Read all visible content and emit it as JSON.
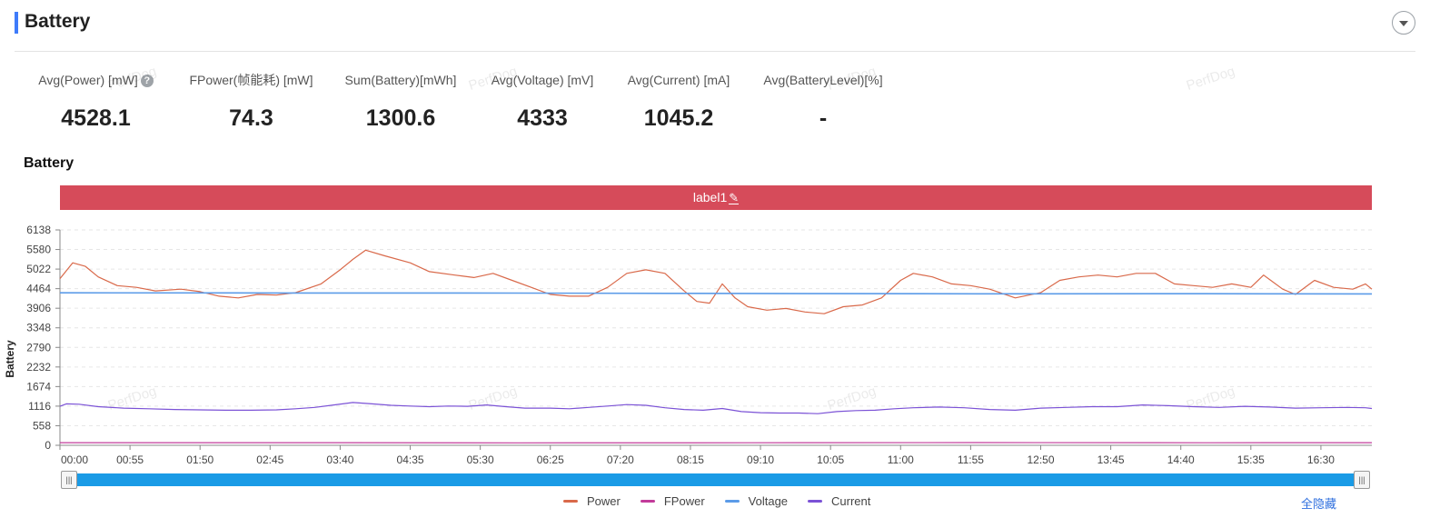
{
  "header": {
    "title": "Battery",
    "collapse_icon": "chevron-down-icon"
  },
  "stats": [
    {
      "label": "Avg(Power) [mW]",
      "value": "4528.1",
      "help": true
    },
    {
      "label": "FPower(帧能耗) [mW]",
      "value": "74.3"
    },
    {
      "label": "Sum(Battery)[mWh]",
      "value": "1300.6"
    },
    {
      "label": "Avg(Voltage) [mV]",
      "value": "4333"
    },
    {
      "label": "Avg(Current) [mA]",
      "value": "1045.2"
    },
    {
      "label": "Avg(BatteryLevel)[%]",
      "value": "-"
    }
  ],
  "help_glyph": "?",
  "watermark_text": "PerfDog",
  "chart": {
    "title": "Battery",
    "label_band": {
      "text": "label1",
      "color": "#d64b5a",
      "edit_icon": "pencil-icon"
    }
  },
  "legend": [
    {
      "name": "Power",
      "color": "#d9694a"
    },
    {
      "name": "FPower",
      "color": "#c23b9a"
    },
    {
      "name": "Voltage",
      "color": "#5b9be8"
    },
    {
      "name": "Current",
      "color": "#7b52d6"
    }
  ],
  "toggle_all_label": "全隐藏",
  "chart_data": {
    "type": "line",
    "ylabel": "Battery",
    "yticks": [
      0,
      558,
      1116,
      1674,
      2232,
      2790,
      3348,
      3906,
      4464,
      5022,
      5580,
      6138
    ],
    "ylim": [
      0,
      6138
    ],
    "xlim": [
      "00:00",
      "17:10"
    ],
    "xticks": [
      "00:00",
      "00:55",
      "01:50",
      "02:45",
      "03:40",
      "04:35",
      "05:30",
      "06:25",
      "07:20",
      "08:15",
      "09:10",
      "10:05",
      "11:00",
      "11:55",
      "12:50",
      "13:45",
      "14:40",
      "15:35",
      "16:30"
    ],
    "grid": "horizontal dashed",
    "legend_position": "bottom",
    "series": [
      {
        "name": "Power",
        "color": "#d9694a",
        "x": [
          "00:00",
          "00:10",
          "00:20",
          "00:30",
          "00:45",
          "01:00",
          "01:15",
          "01:35",
          "01:50",
          "02:05",
          "02:20",
          "02:35",
          "02:50",
          "03:05",
          "03:25",
          "03:40",
          "03:50",
          "04:00",
          "04:15",
          "04:35",
          "04:50",
          "05:10",
          "05:25",
          "05:40",
          "05:55",
          "06:10",
          "06:25",
          "06:40",
          "06:55",
          "07:10",
          "07:25",
          "07:40",
          "07:55",
          "08:10",
          "08:20",
          "08:30",
          "08:40",
          "08:50",
          "09:00",
          "09:15",
          "09:30",
          "09:45",
          "10:00",
          "10:15",
          "10:30",
          "10:45",
          "11:00",
          "11:10",
          "11:25",
          "11:40",
          "11:55",
          "12:10",
          "12:30",
          "12:50",
          "13:05",
          "13:20",
          "13:35",
          "13:50",
          "14:05",
          "14:20",
          "14:35",
          "14:50",
          "15:05",
          "15:20",
          "15:35",
          "15:45",
          "16:00",
          "16:10",
          "16:25",
          "16:40",
          "16:55",
          "17:05",
          "17:10"
        ],
        "values": [
          4750,
          5200,
          5100,
          4800,
          4550,
          4500,
          4400,
          4450,
          4380,
          4250,
          4200,
          4300,
          4280,
          4350,
          4600,
          5000,
          5300,
          5560,
          5400,
          5200,
          4950,
          4850,
          4780,
          4900,
          4700,
          4500,
          4300,
          4250,
          4250,
          4500,
          4900,
          5000,
          4900,
          4400,
          4100,
          4050,
          4600,
          4200,
          3950,
          3850,
          3900,
          3800,
          3750,
          3950,
          4000,
          4200,
          4700,
          4900,
          4800,
          4600,
          4550,
          4450,
          4200,
          4350,
          4700,
          4800,
          4850,
          4800,
          4900,
          4900,
          4600,
          4550,
          4500,
          4600,
          4500,
          4850,
          4450,
          4300,
          4700,
          4500,
          4450,
          4600,
          4450
        ]
      },
      {
        "name": "FPower",
        "color": "#c23b9a",
        "x": [
          "00:00",
          "03:00",
          "06:00",
          "09:00",
          "12:00",
          "15:00",
          "17:10"
        ],
        "values": [
          74,
          76,
          70,
          72,
          78,
          73,
          74
        ]
      },
      {
        "name": "Voltage",
        "color": "#5b9be8",
        "x": [
          "00:00",
          "03:00",
          "06:00",
          "08:00",
          "10:00",
          "12:00",
          "15:00",
          "17:10"
        ],
        "values": [
          4345,
          4340,
          4338,
          4330,
          4322,
          4318,
          4320,
          4315
        ]
      },
      {
        "name": "Current",
        "color": "#7b52d6",
        "x": [
          "00:00",
          "00:05",
          "00:15",
          "00:30",
          "00:50",
          "01:10",
          "01:30",
          "01:50",
          "02:10",
          "02:30",
          "02:50",
          "03:05",
          "03:20",
          "03:35",
          "03:50",
          "04:05",
          "04:20",
          "04:35",
          "04:50",
          "05:05",
          "05:20",
          "05:35",
          "05:50",
          "06:05",
          "06:25",
          "06:40",
          "06:55",
          "07:10",
          "07:25",
          "07:40",
          "07:55",
          "08:10",
          "08:25",
          "08:40",
          "08:55",
          "09:10",
          "09:25",
          "09:40",
          "09:55",
          "10:10",
          "10:25",
          "10:40",
          "10:55",
          "11:10",
          "11:30",
          "11:50",
          "12:10",
          "12:30",
          "12:50",
          "13:10",
          "13:30",
          "13:50",
          "14:10",
          "14:30",
          "14:50",
          "15:10",
          "15:30",
          "15:50",
          "16:10",
          "16:30",
          "16:50",
          "17:05",
          "17:10"
        ],
        "values": [
          1110,
          1180,
          1170,
          1100,
          1060,
          1040,
          1020,
          1010,
          1000,
          1000,
          1010,
          1040,
          1080,
          1150,
          1220,
          1180,
          1140,
          1120,
          1100,
          1120,
          1110,
          1150,
          1100,
          1060,
          1060,
          1040,
          1080,
          1120,
          1160,
          1140,
          1070,
          1020,
          1000,
          1050,
          960,
          930,
          920,
          920,
          900,
          960,
          990,
          1000,
          1040,
          1070,
          1090,
          1070,
          1020,
          1000,
          1060,
          1080,
          1100,
          1100,
          1150,
          1130,
          1100,
          1080,
          1110,
          1090,
          1060,
          1070,
          1080,
          1070,
          1050
        ]
      }
    ]
  }
}
